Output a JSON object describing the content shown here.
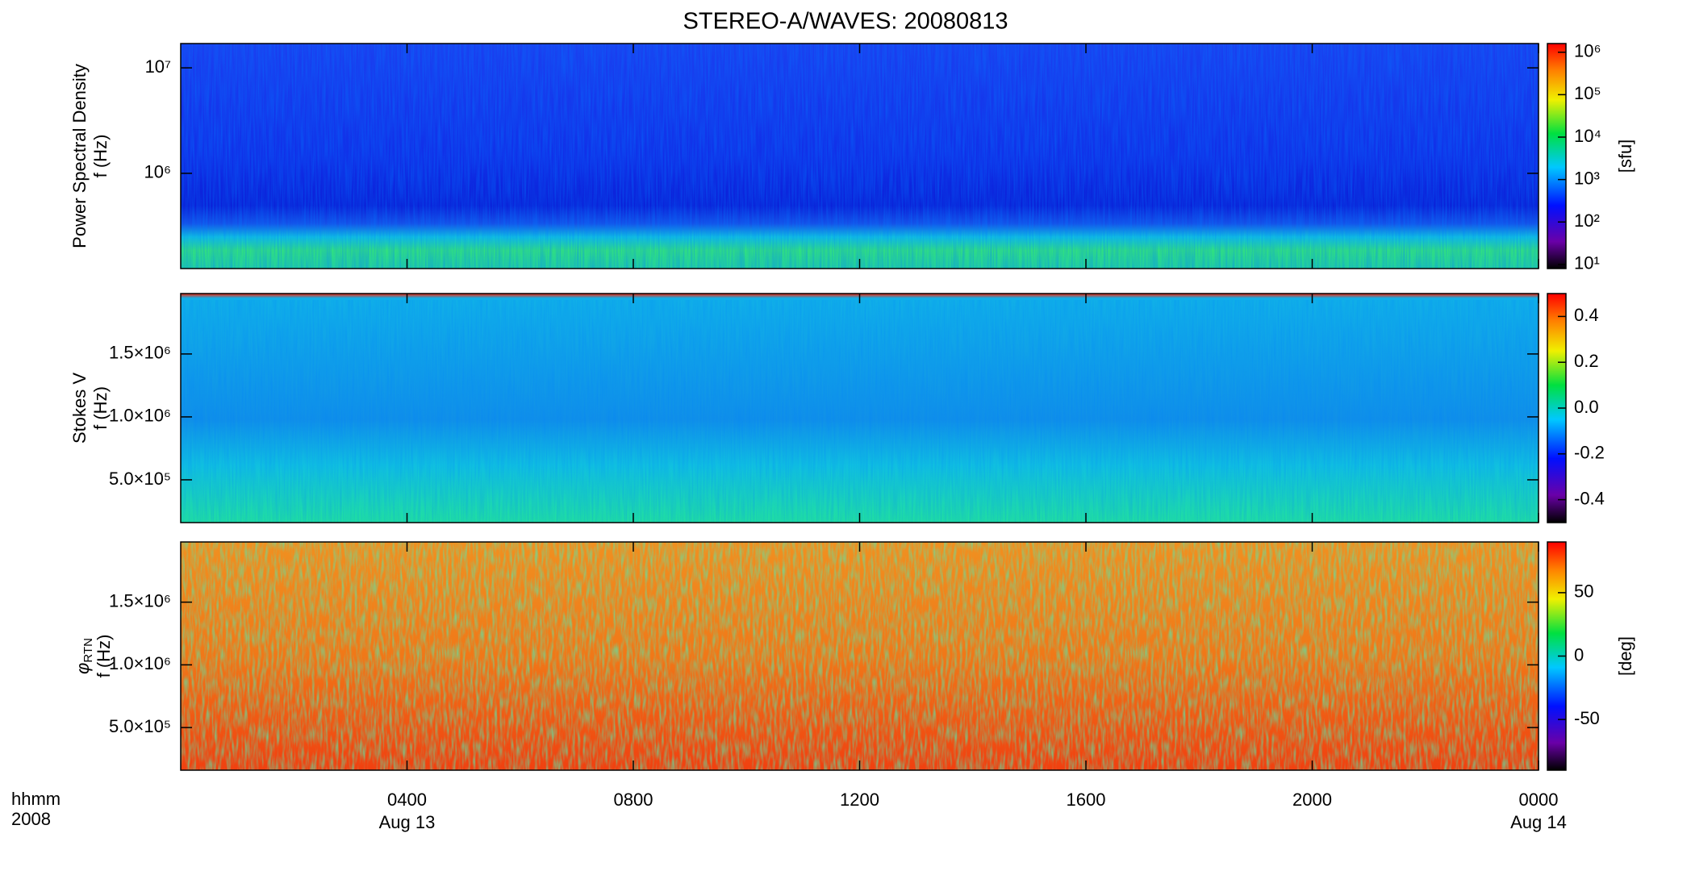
{
  "title": "STEREO-A/WAVES: 20080813",
  "x_axis_label": [
    "hhmm",
    "2008"
  ],
  "chart_data": [
    {
      "type": "heatmap",
      "ylabel": [
        "Power Spectral Density",
        "f (Hz)"
      ],
      "log_y": true,
      "ylim": [
        125000,
        17000000
      ],
      "yticks": [
        {
          "value": 1000000,
          "label": "10⁶"
        },
        {
          "value": 10000000,
          "label": "10⁷"
        }
      ],
      "color_log": true,
      "clim": [
        8,
        1600000
      ],
      "cticks": [
        {
          "value": 10,
          "label": "10¹"
        },
        {
          "value": 100,
          "label": "10²"
        },
        {
          "value": 1000,
          "label": "10³"
        },
        {
          "value": 10000,
          "label": "10⁴"
        },
        {
          "value": 100000,
          "label": "10⁵"
        },
        {
          "value": 1000000,
          "label": "10⁶"
        }
      ],
      "clabel": "[sfu]"
    },
    {
      "type": "heatmap",
      "ylabel": [
        "Stokes V",
        "f (Hz)"
      ],
      "log_y": false,
      "ylim": [
        160000,
        1980000
      ],
      "yticks": [
        {
          "value": 500000,
          "label": "5.0×10⁵"
        },
        {
          "value": 1000000,
          "label": "1.0×10⁶"
        },
        {
          "value": 1500000,
          "label": "1.5×10⁶"
        }
      ],
      "color_log": false,
      "clim": [
        -0.5,
        0.5
      ],
      "cticks": [
        -0.4,
        -0.2,
        {
          "value": 0,
          "label": "0.0"
        },
        0.2,
        0.4
      ]
    },
    {
      "type": "heatmap",
      "ylabel": [
        "φ",
        "RTN",
        "f (Hz)"
      ],
      "log_y": false,
      "ylim": [
        160000,
        1980000
      ],
      "yticks": [
        {
          "value": 500000,
          "label": "5.0×10⁵"
        },
        {
          "value": 1000000,
          "label": "1.0×10⁶"
        },
        {
          "value": 1500000,
          "label": "1.5×10⁶"
        }
      ],
      "color_log": false,
      "clim": [
        -90,
        90
      ],
      "cticks": [
        -50,
        0,
        50
      ],
      "clabel": "[deg]",
      "xlim": [
        0,
        24
      ],
      "xticks": [
        {
          "value": 4,
          "label": "0400"
        },
        {
          "value": 8,
          "label": "0800"
        },
        {
          "value": 12,
          "label": "1200"
        },
        {
          "value": 16,
          "label": "1600"
        },
        {
          "value": 20,
          "label": "2000"
        },
        {
          "value": 24,
          "label": "0000"
        }
      ],
      "xdates": [
        {
          "value": 4,
          "label": "Aug 13"
        },
        {
          "value": 24,
          "label": "Aug 14"
        }
      ]
    }
  ]
}
